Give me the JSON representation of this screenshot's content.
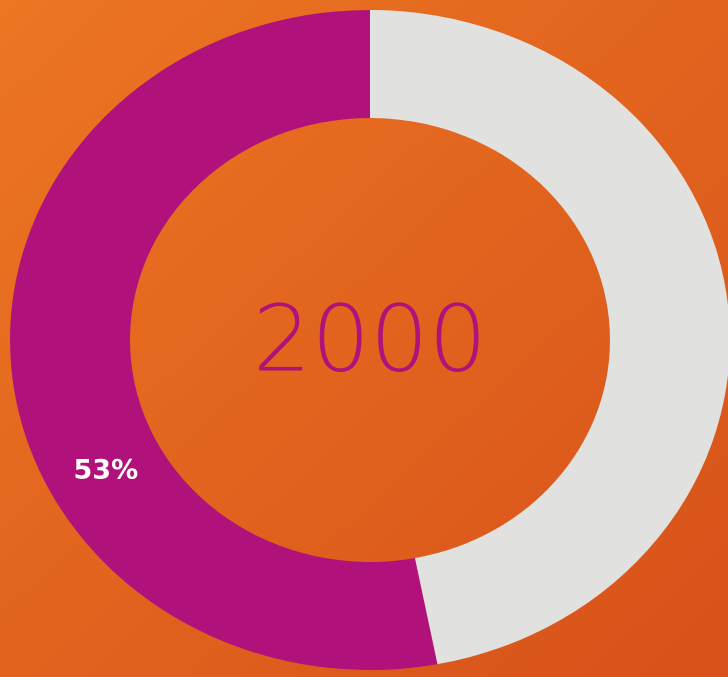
{
  "chart_data": {
    "type": "donut",
    "center_label": "2000",
    "values": [
      53,
      47
    ],
    "value_labels": [
      "53%",
      null
    ],
    "colors": [
      "#b0117b",
      "#e1e1df"
    ],
    "direction": "counterclockwise"
  }
}
